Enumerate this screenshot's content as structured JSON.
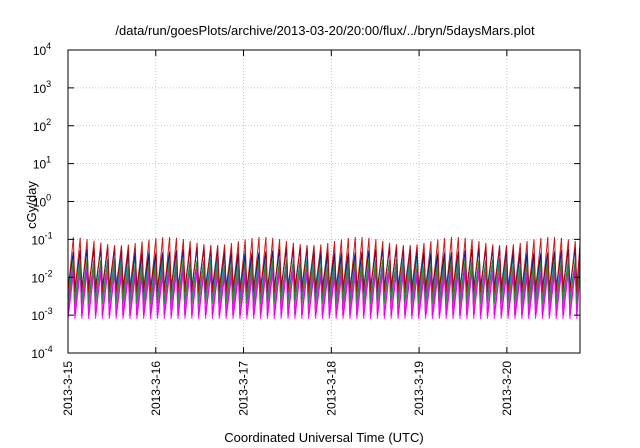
{
  "chart_data": {
    "type": "line",
    "title": "/data/run/goesPlots/archive/2013-03-20/20:00/flux/../bryn/5daysMars.plot",
    "xlabel": "Coordinated Universal Time (UTC)",
    "ylabel": "cGy/day",
    "yscale": "log",
    "ylim": [
      0.0001,
      10000
    ],
    "xlim": [
      "2013-03-15T00:00",
      "2013-03-20T20:00"
    ],
    "grid": true,
    "legend": "none",
    "x_ticks": [
      "2013-3-15",
      "2013-3-16",
      "2013-3-17",
      "2013-3-18",
      "2013-3-19",
      "2013-3-20"
    ],
    "y_ticks": [
      {
        "base": "10",
        "exp": "4",
        "value": 10000
      },
      {
        "base": "10",
        "exp": "3",
        "value": 1000
      },
      {
        "base": "10",
        "exp": "2",
        "value": 100
      },
      {
        "base": "10",
        "exp": "1",
        "value": 10
      },
      {
        "base": "10",
        "exp": "0",
        "value": 1
      },
      {
        "base": "10",
        "exp": "-1",
        "value": 0.1
      },
      {
        "base": "10",
        "exp": "-2",
        "value": 0.01
      },
      {
        "base": "10",
        "exp": "-3",
        "value": 0.001
      },
      {
        "base": "10",
        "exp": "-4",
        "value": 0.0001
      }
    ],
    "orbit_period_hours": 1.88,
    "series": [
      {
        "color": "#ff00ff",
        "min": 0.0008,
        "max": 0.012
      },
      {
        "color": "#cc00cc",
        "min": 0.001,
        "max": 0.015
      },
      {
        "color": "#ff00ff",
        "min": 0.0012,
        "max": 0.02
      },
      {
        "color": "#00cccc",
        "min": 0.003,
        "max": 0.035
      },
      {
        "color": "#008b8b",
        "min": 0.0025,
        "max": 0.03
      },
      {
        "color": "#1e90ff",
        "min": 0.006,
        "max": 0.055
      },
      {
        "color": "#000080",
        "min": 0.005,
        "max": 0.05
      },
      {
        "color": "#228b22",
        "min": 0.002,
        "max": 0.025
      },
      {
        "color": "#cc0000",
        "min": 0.004,
        "max": 0.09
      }
    ]
  }
}
